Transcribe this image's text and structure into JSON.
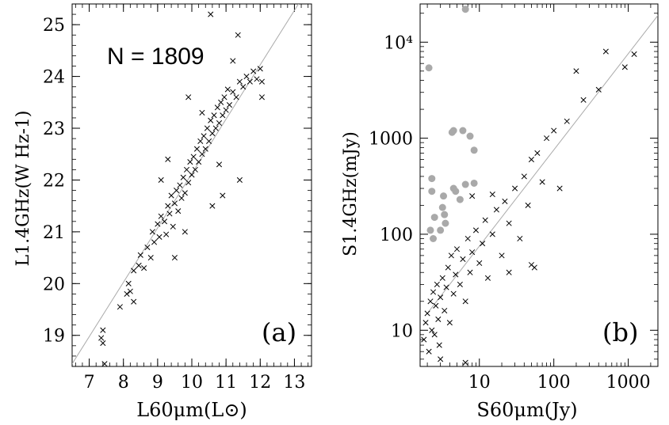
{
  "chart_data": [
    {
      "type": "scatter",
      "panel_label": "(a)",
      "annotation": "N = 1809",
      "xlabel": "L60μm(L⊙)",
      "ylabel": "L1.4GHz(W Hz-1)",
      "xlim": [
        6.5,
        13.5
      ],
      "ylim": [
        18.4,
        25.4
      ],
      "xticks": [
        "7",
        "8",
        "9",
        "10",
        "11",
        "12",
        "13"
      ],
      "yticks": [
        "19",
        "20",
        "21",
        "22",
        "23",
        "24",
        "25"
      ],
      "fit_line": [
        [
          6.5,
          18.45
        ],
        [
          13.5,
          25.8
        ]
      ],
      "series": [
        {
          "marker": "x",
          "color": "#000000",
          "points": [
            [
              7.4,
              19.1
            ],
            [
              7.35,
              18.95
            ],
            [
              7.4,
              18.85
            ],
            [
              7.45,
              18.45
            ],
            [
              7.9,
              19.55
            ],
            [
              8.1,
              19.8
            ],
            [
              8.15,
              20.0
            ],
            [
              8.2,
              19.85
            ],
            [
              8.3,
              19.65
            ],
            [
              8.45,
              20.35
            ],
            [
              8.5,
              20.55
            ],
            [
              8.6,
              20.3
            ],
            [
              8.7,
              20.7
            ],
            [
              8.8,
              20.5
            ],
            [
              8.85,
              21.0
            ],
            [
              8.9,
              20.8
            ],
            [
              9.0,
              21.15
            ],
            [
              9.05,
              20.9
            ],
            [
              9.1,
              21.3
            ],
            [
              9.2,
              21.2
            ],
            [
              9.25,
              20.95
            ],
            [
              9.3,
              21.5
            ],
            [
              9.35,
              21.35
            ],
            [
              9.4,
              21.7
            ],
            [
              9.45,
              21.1
            ],
            [
              9.5,
              21.55
            ],
            [
              9.55,
              21.8
            ],
            [
              9.6,
              21.4
            ],
            [
              9.65,
              21.9
            ],
            [
              9.7,
              21.65
            ],
            [
              9.75,
              22.05
            ],
            [
              9.8,
              21.75
            ],
            [
              9.85,
              22.2
            ],
            [
              9.9,
              21.95
            ],
            [
              9.95,
              22.35
            ],
            [
              10.0,
              22.1
            ],
            [
              10.05,
              22.45
            ],
            [
              10.1,
              22.2
            ],
            [
              10.15,
              22.6
            ],
            [
              10.2,
              22.35
            ],
            [
              10.25,
              22.75
            ],
            [
              10.3,
              22.5
            ],
            [
              10.35,
              22.85
            ],
            [
              10.4,
              22.6
            ],
            [
              10.45,
              23.0
            ],
            [
              10.5,
              22.75
            ],
            [
              10.55,
              23.15
            ],
            [
              10.6,
              22.9
            ],
            [
              10.65,
              23.25
            ],
            [
              10.7,
              23.0
            ],
            [
              10.75,
              23.4
            ],
            [
              10.8,
              23.1
            ],
            [
              10.85,
              23.5
            ],
            [
              10.9,
              23.25
            ],
            [
              10.95,
              23.6
            ],
            [
              11.0,
              23.35
            ],
            [
              11.05,
              23.75
            ],
            [
              11.1,
              23.45
            ],
            [
              11.2,
              23.7
            ],
            [
              11.3,
              23.6
            ],
            [
              11.4,
              23.9
            ],
            [
              11.5,
              23.8
            ],
            [
              11.6,
              24.0
            ],
            [
              11.7,
              23.9
            ],
            [
              11.8,
              24.1
            ],
            [
              11.9,
              23.95
            ],
            [
              12.0,
              24.15
            ],
            [
              12.05,
              23.9
            ],
            [
              9.3,
              22.4
            ],
            [
              9.1,
              22.0
            ],
            [
              9.9,
              23.6
            ],
            [
              10.3,
              23.3
            ],
            [
              10.6,
              21.5
            ],
            [
              10.9,
              21.7
            ],
            [
              11.4,
              22.0
            ],
            [
              11.2,
              24.3
            ],
            [
              10.55,
              25.2
            ],
            [
              11.35,
              24.8
            ],
            [
              12.05,
              23.6
            ],
            [
              9.5,
              20.5
            ],
            [
              8.3,
              20.25
            ],
            [
              10.8,
              22.3
            ],
            [
              9.8,
              21.0
            ]
          ]
        }
      ]
    },
    {
      "type": "scatter",
      "panel_label": "(b)",
      "xlabel": "S60μm(Jy)",
      "ylabel": "S1.4GHz(mJy)",
      "xscale": "log",
      "yscale": "log",
      "xlim": [
        1.6,
        2500
      ],
      "ylim": [
        4.2,
        25000
      ],
      "xticks": [
        "10",
        "100",
        "1000"
      ],
      "yticks": [
        "10",
        "100",
        "1000",
        "10⁴"
      ],
      "fit_line": [
        [
          2.0,
          15.0
        ],
        [
          2500,
          19000
        ]
      ],
      "series": [
        {
          "marker": "x",
          "color": "#000000",
          "points": [
            [
              1.8,
              8
            ],
            [
              1.9,
              12
            ],
            [
              2.0,
              15
            ],
            [
              2.1,
              6
            ],
            [
              2.2,
              20
            ],
            [
              2.3,
              10
            ],
            [
              2.4,
              25
            ],
            [
              2.5,
              9
            ],
            [
              2.6,
              18
            ],
            [
              2.7,
              30
            ],
            [
              2.8,
              13
            ],
            [
              2.9,
              7
            ],
            [
              3.0,
              22
            ],
            [
              3.2,
              35
            ],
            [
              3.4,
              16
            ],
            [
              3.6,
              28
            ],
            [
              3.8,
              45
            ],
            [
              4.0,
              12
            ],
            [
              4.2,
              60
            ],
            [
              4.5,
              24
            ],
            [
              4.8,
              38
            ],
            [
              5.0,
              70
            ],
            [
              5.5,
              30
            ],
            [
              6.0,
              55
            ],
            [
              6.5,
              20
            ],
            [
              7.0,
              90
            ],
            [
              7.5,
              40
            ],
            [
              8.0,
              65
            ],
            [
              9.0,
              110
            ],
            [
              10,
              50
            ],
            [
              11,
              80
            ],
            [
              12,
              140
            ],
            [
              13,
              35
            ],
            [
              15,
              100
            ],
            [
              17,
              180
            ],
            [
              20,
              60
            ],
            [
              22,
              220
            ],
            [
              25,
              130
            ],
            [
              30,
              300
            ],
            [
              35,
              90
            ],
            [
              40,
              400
            ],
            [
              45,
              200
            ],
            [
              50,
              600
            ],
            [
              55,
              45
            ],
            [
              60,
              700
            ],
            [
              70,
              350
            ],
            [
              80,
              1000
            ],
            [
              100,
              1200
            ],
            [
              120,
              300
            ],
            [
              150,
              1500
            ],
            [
              200,
              5000
            ],
            [
              250,
              2500
            ],
            [
              400,
              3200
            ],
            [
              500,
              8000
            ],
            [
              900,
              5500
            ],
            [
              1200,
              7500
            ],
            [
              3.0,
              5
            ],
            [
              6.5,
              4.6
            ],
            [
              25,
              40
            ],
            [
              50,
              48
            ],
            [
              15,
              260
            ],
            [
              8.0,
              250
            ]
          ]
        },
        {
          "marker": "filled-circle",
          "color": "#a9a9a9",
          "points": [
            [
              2.1,
              5400
            ],
            [
              6.5,
              22000
            ],
            [
              2.3,
              380
            ],
            [
              2.3,
              280
            ],
            [
              2.5,
              150
            ],
            [
              2.2,
              110
            ],
            [
              2.4,
              90
            ],
            [
              3.3,
              250
            ],
            [
              3.2,
              190
            ],
            [
              3.4,
              160
            ],
            [
              3.5,
              130
            ],
            [
              4.3,
              1150
            ],
            [
              4.5,
              1200
            ],
            [
              4.5,
              300
            ],
            [
              4.8,
              280
            ],
            [
              6.0,
              1200
            ],
            [
              7.5,
              1050
            ],
            [
              8.5,
              750
            ],
            [
              8.5,
              340
            ],
            [
              6.5,
              330
            ],
            [
              5.5,
              230
            ],
            [
              3.0,
              110
            ]
          ]
        }
      ]
    }
  ]
}
